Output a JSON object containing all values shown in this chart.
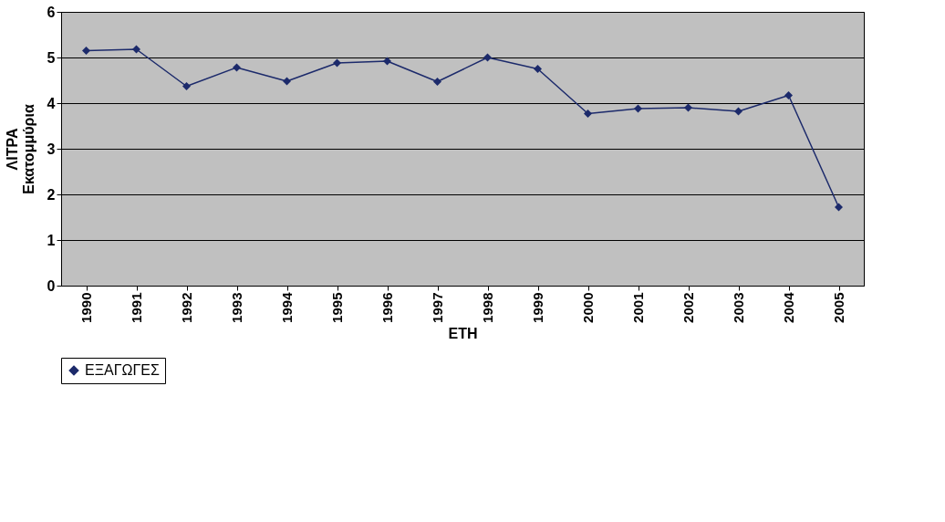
{
  "chart_data": {
    "type": "line",
    "xlabel": "ΕΤΗ",
    "ylabel": "ΛΙΤΡΑ Εκατομμύρια",
    "categories": [
      "1990",
      "1991",
      "1992",
      "1993",
      "1994",
      "1995",
      "1996",
      "1997",
      "1998",
      "1999",
      "2000",
      "2001",
      "2002",
      "2003",
      "2004",
      "2005"
    ],
    "series": [
      {
        "name": "ΕΞΑΓΩΓΕΣ",
        "color": "#1c2a6b",
        "values": [
          5.15,
          5.18,
          4.37,
          4.78,
          4.48,
          4.88,
          4.92,
          4.47,
          5.0,
          4.75,
          3.77,
          3.88,
          3.9,
          3.82,
          4.17,
          1.72
        ]
      }
    ],
    "ylim": [
      0,
      6
    ],
    "yticks": [
      0,
      1,
      2,
      3,
      4,
      5,
      6
    ],
    "grid": "y",
    "legend": "bottom",
    "marker": "diamond",
    "line_style": "solid"
  }
}
